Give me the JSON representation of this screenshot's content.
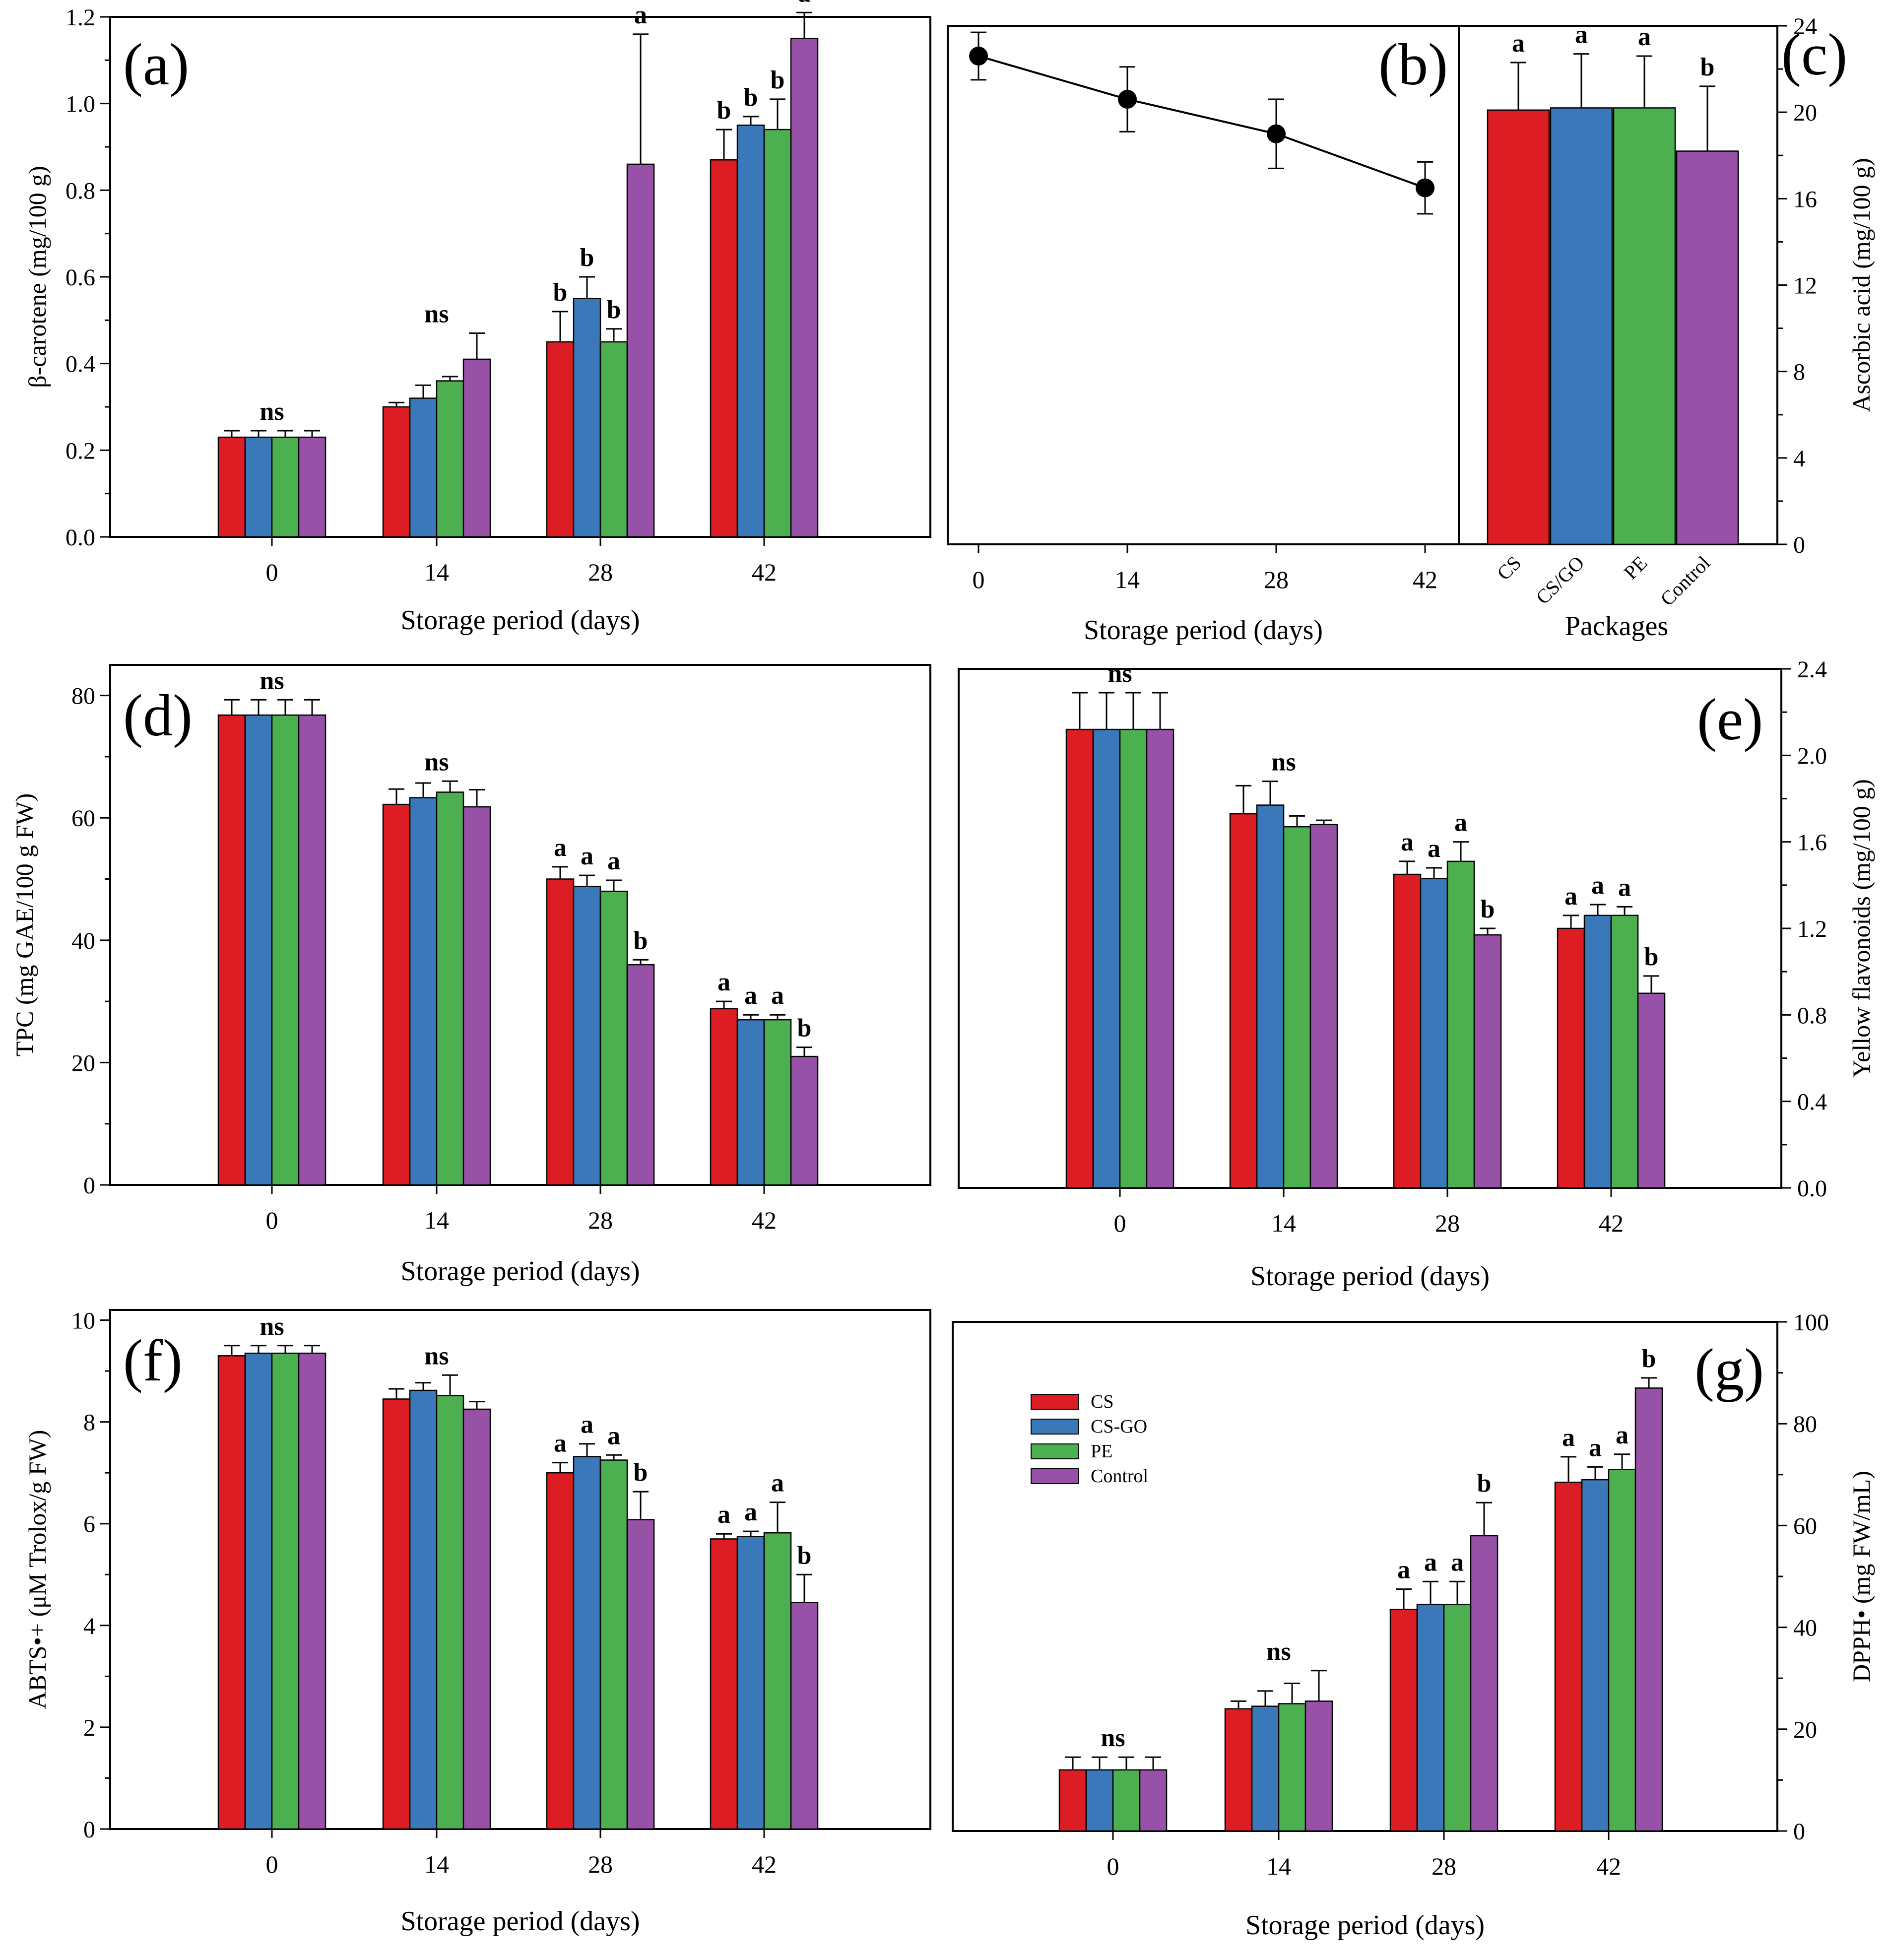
{
  "colors": {
    "CS": "#dc1e24",
    "CS-GO": "#3a78b9",
    "PE": "#4caf50",
    "Control": "#9751a6"
  },
  "chart_data": [
    {
      "panel": "(a)",
      "type": "bar",
      "ylabel": "β-carotene (mg/100 g)",
      "xlabel": "Storage period (days)",
      "ylim": [
        0,
        1.2
      ],
      "yticks": [
        "0.0",
        "0.2",
        "0.4",
        "0.6",
        "0.8",
        "1.0",
        "1.2"
      ],
      "ytick_values": [
        0,
        0.2,
        0.4,
        0.6,
        0.8,
        1.0,
        1.2
      ],
      "categories": [
        "0",
        "14",
        "28",
        "42"
      ],
      "yaxis": "left",
      "series": [
        {
          "name": "CS",
          "values": [
            0.23,
            0.3,
            0.45,
            0.87
          ],
          "errors": [
            0.015,
            0.01,
            0.07,
            0.07
          ]
        },
        {
          "name": "CS-GO",
          "values": [
            0.23,
            0.32,
            0.55,
            0.95
          ],
          "errors": [
            0.015,
            0.03,
            0.05,
            0.02
          ]
        },
        {
          "name": "PE",
          "values": [
            0.23,
            0.36,
            0.45,
            0.94
          ],
          "errors": [
            0.015,
            0.01,
            0.03,
            0.07
          ]
        },
        {
          "name": "Control",
          "values": [
            0.23,
            0.41,
            0.86,
            1.15
          ],
          "errors": [
            0.015,
            0.06,
            0.3,
            0.06
          ]
        }
      ],
      "annotations": [
        [
          "ns"
        ],
        [
          "ns"
        ],
        [
          "b",
          "b",
          "b",
          "a"
        ],
        [
          "b",
          "b",
          "b",
          "a"
        ]
      ]
    },
    {
      "panel": "(b)",
      "type": "line",
      "xlabel": "Storage period (days)",
      "ylim": [
        0,
        24
      ],
      "categories": [
        "0",
        "14",
        "28",
        "42"
      ],
      "values": [
        22.6,
        20.6,
        19.0,
        16.5
      ],
      "errors": [
        1.1,
        1.5,
        1.6,
        1.2
      ]
    },
    {
      "panel": "(c)",
      "type": "bar",
      "ylabel": "Ascorbic acid (mg/100 g)",
      "xlabel": "Packages",
      "ylim": [
        0,
        24
      ],
      "yticks": [
        "0",
        "4",
        "8",
        "12",
        "16",
        "20",
        "24"
      ],
      "ytick_values": [
        0,
        4,
        8,
        12,
        16,
        20,
        24
      ],
      "yaxis": "right",
      "categories": [
        "CS",
        "CS/GO",
        "PE",
        "Control"
      ],
      "values": [
        20.1,
        20.2,
        20.2,
        18.2
      ],
      "errors": [
        2.2,
        2.5,
        2.4,
        3.0
      ],
      "annotations": [
        "a",
        "a",
        "a",
        "b"
      ]
    },
    {
      "panel": "(d)",
      "type": "bar",
      "ylabel": "TPC (mg GAE/100 g FW)",
      "xlabel": "Storage period (days)",
      "ylim": [
        0,
        85
      ],
      "yticks": [
        "0",
        "20",
        "40",
        "60",
        "80"
      ],
      "ytick_values": [
        0,
        20,
        40,
        60,
        80
      ],
      "categories": [
        "0",
        "14",
        "28",
        "42"
      ],
      "yaxis": "left",
      "series": [
        {
          "name": "CS",
          "values": [
            76.8,
            62.2,
            50.0,
            28.8
          ],
          "errors": [
            2.5,
            2.5,
            2.0,
            1.2
          ]
        },
        {
          "name": "CS-GO",
          "values": [
            76.8,
            63.3,
            48.8,
            27.0
          ],
          "errors": [
            2.5,
            2.4,
            1.8,
            0.8
          ]
        },
        {
          "name": "PE",
          "values": [
            76.8,
            64.2,
            48.0,
            27.0
          ],
          "errors": [
            2.5,
            1.8,
            1.8,
            0.8
          ]
        },
        {
          "name": "Control",
          "values": [
            76.8,
            61.8,
            36.0,
            21.0
          ],
          "errors": [
            2.5,
            2.8,
            0.8,
            1.5
          ]
        }
      ],
      "annotations": [
        [
          "ns"
        ],
        [
          "ns"
        ],
        [
          "a",
          "a",
          "a",
          "b"
        ],
        [
          "a",
          "a",
          "a",
          "b"
        ]
      ]
    },
    {
      "panel": "(e)",
      "type": "bar",
      "ylabel": "Yellow flavonoids (mg/100 g)",
      "xlabel": "Storage period (days)",
      "ylim": [
        0,
        2.4
      ],
      "yticks": [
        "0.0",
        "0.4",
        "0.8",
        "1.2",
        "1.6",
        "2.0",
        "2.4"
      ],
      "ytick_values": [
        0,
        0.4,
        0.8,
        1.2,
        1.6,
        2.0,
        2.4
      ],
      "categories": [
        "0",
        "14",
        "28",
        "42"
      ],
      "yaxis": "right",
      "series": [
        {
          "name": "CS",
          "values": [
            2.12,
            1.73,
            1.45,
            1.2
          ],
          "errors": [
            0.17,
            0.13,
            0.06,
            0.06
          ]
        },
        {
          "name": "CS-GO",
          "values": [
            2.12,
            1.77,
            1.43,
            1.26
          ],
          "errors": [
            0.17,
            0.11,
            0.05,
            0.05
          ]
        },
        {
          "name": "PE",
          "values": [
            2.12,
            1.67,
            1.51,
            1.26
          ],
          "errors": [
            0.17,
            0.05,
            0.09,
            0.04
          ]
        },
        {
          "name": "Control",
          "values": [
            2.12,
            1.68,
            1.17,
            0.9
          ],
          "errors": [
            0.17,
            0.02,
            0.03,
            0.08
          ]
        }
      ],
      "annotations": [
        [
          "ns"
        ],
        [
          "ns"
        ],
        [
          "a",
          "a",
          "a",
          "b"
        ],
        [
          "a",
          "a",
          "a",
          "b"
        ]
      ]
    },
    {
      "panel": "(f)",
      "type": "bar",
      "ylabel": "ABTS•+ (μM Trolox/g FW)",
      "xlabel": "Storage period (days)",
      "ylim": [
        0,
        10.2
      ],
      "yticks": [
        "0",
        "2",
        "4",
        "6",
        "8",
        "10"
      ],
      "ytick_values": [
        0,
        2,
        4,
        6,
        8,
        10
      ],
      "categories": [
        "0",
        "14",
        "28",
        "42"
      ],
      "yaxis": "left",
      "series": [
        {
          "name": "CS",
          "values": [
            9.3,
            8.45,
            7.0,
            5.7
          ],
          "errors": [
            0.2,
            0.2,
            0.2,
            0.1
          ]
        },
        {
          "name": "CS-GO",
          "values": [
            9.35,
            8.62,
            7.32,
            5.75
          ],
          "errors": [
            0.15,
            0.15,
            0.25,
            0.1
          ]
        },
        {
          "name": "PE",
          "values": [
            9.35,
            8.52,
            7.25,
            5.82
          ],
          "errors": [
            0.15,
            0.4,
            0.1,
            0.6
          ]
        },
        {
          "name": "Control",
          "values": [
            9.35,
            8.25,
            6.08,
            4.45
          ],
          "errors": [
            0.15,
            0.15,
            0.55,
            0.55
          ]
        }
      ],
      "annotations": [
        [
          "ns"
        ],
        [
          "ns"
        ],
        [
          "a",
          "a",
          "a",
          "b"
        ],
        [
          "a",
          "a",
          "a",
          "b"
        ]
      ]
    },
    {
      "panel": "(g)",
      "type": "bar",
      "ylabel": "DPPH• (mg FW/mL)",
      "xlabel": "Storage period (days)",
      "ylim": [
        0,
        100
      ],
      "yticks": [
        "0",
        "20",
        "40",
        "60",
        "80",
        "100"
      ],
      "ytick_values": [
        0,
        20,
        40,
        60,
        80,
        100
      ],
      "categories": [
        "0",
        "14",
        "28",
        "42"
      ],
      "yaxis": "right",
      "series": [
        {
          "name": "CS",
          "values": [
            12.0,
            24.0,
            43.5,
            68.5
          ],
          "errors": [
            2.5,
            1.5,
            4.0,
            5.0
          ]
        },
        {
          "name": "CS-GO",
          "values": [
            12.0,
            24.5,
            44.5,
            69.0
          ],
          "errors": [
            2.5,
            3.0,
            4.5,
            2.5
          ]
        },
        {
          "name": "PE",
          "values": [
            12.0,
            25.0,
            44.5,
            71.0
          ],
          "errors": [
            2.5,
            4.0,
            4.5,
            3.0
          ]
        },
        {
          "name": "Control",
          "values": [
            12.0,
            25.5,
            58.0,
            87.0
          ],
          "errors": [
            2.5,
            6.0,
            6.5,
            2.0
          ]
        }
      ],
      "annotations": [
        [
          "ns"
        ],
        [
          "ns"
        ],
        [
          "a",
          "a",
          "a",
          "b"
        ],
        [
          "a",
          "a",
          "a",
          "b"
        ]
      ],
      "legend": [
        "CS",
        "CS-GO",
        "PE",
        "Control"
      ]
    }
  ]
}
